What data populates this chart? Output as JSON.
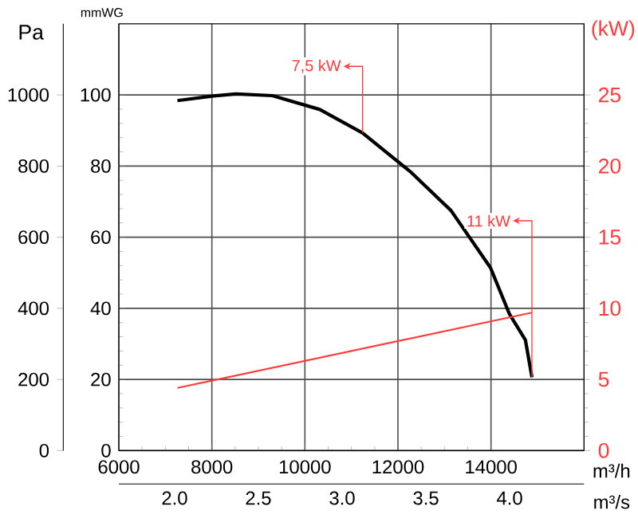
{
  "chart_data": {
    "type": "line",
    "xlabel": "m³/h",
    "x2label": "m³/s",
    "ylabel": "Pa",
    "y2label": "(kW)",
    "y3label": "mmWG",
    "xlim": [
      6000,
      16000
    ],
    "xticks": [
      6000,
      8000,
      10000,
      12000,
      14000
    ],
    "x2lim": [
      1.667,
      4.444
    ],
    "x2ticks": [
      {
        "value": 2,
        "label": "2.0"
      },
      2.5,
      {
        "value": 3,
        "label": "3.0"
      },
      3.5,
      {
        "value": 4,
        "label": "4.0"
      }
    ],
    "ylim": [
      0,
      1200
    ],
    "yticks": [
      0,
      200,
      400,
      600,
      800,
      1000
    ],
    "y2lim": [
      0,
      30
    ],
    "y2ticks": [
      0,
      5,
      10,
      15,
      20,
      25
    ],
    "y3lim": [
      0,
      120
    ],
    "y3ticks": [
      0,
      20,
      40,
      60,
      80,
      100
    ],
    "grid": true,
    "marker": "none",
    "series": [
      {
        "color": "#000000",
        "axis": "y",
        "x": [
          7260,
          8040,
          8520,
          9300,
          10320,
          11240,
          12260,
          13140,
          13990,
          14400,
          14740,
          14880
        ],
        "values": [
          984,
          997,
          1003,
          998,
          959,
          893,
          785,
          675,
          514,
          383,
          311,
          206
        ]
      },
      {
        "color": "#ff3b3b",
        "axis": "y2",
        "x": [
          7260,
          14880
        ],
        "values": [
          4.4,
          9.7
        ]
      }
    ],
    "annotations": [
      {
        "text": "7,5 kW",
        "x": 11240,
        "y": 893
      },
      {
        "text": "11 kW",
        "x": 14880,
        "y": 206
      }
    ]
  }
}
